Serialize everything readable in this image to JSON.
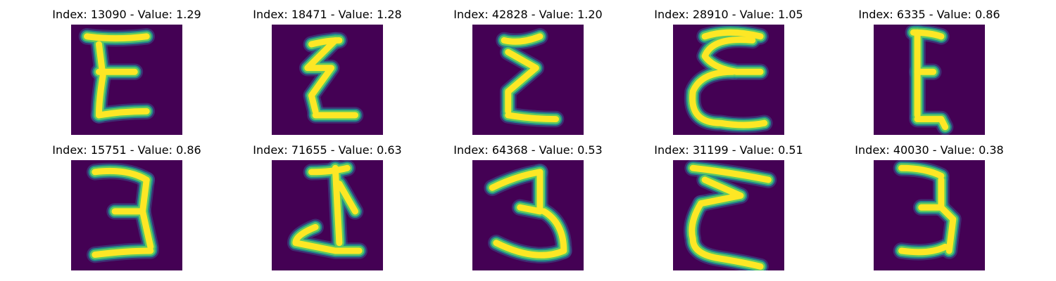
{
  "colormap": "viridis",
  "colors": {
    "background": "#440154",
    "stroke_core": "#fde725",
    "stroke_mid": "#5ec962",
    "stroke_edge": "#21918c",
    "stroke_rim": "#3b528b"
  },
  "samples": [
    {
      "title": "Index: 13090 - Value: 1.29",
      "index": 13090,
      "value": 1.29,
      "glyph": "E-block"
    },
    {
      "title": "Index: 18471 - Value: 1.28",
      "index": 18471,
      "value": 1.28,
      "glyph": "E-zigzag"
    },
    {
      "title": "Index: 42828 - Value: 1.20",
      "index": 42828,
      "value": 1.2,
      "glyph": "E-zigzag-2"
    },
    {
      "title": "Index: 28910 - Value: 1.05",
      "index": 28910,
      "value": 1.05,
      "glyph": "E-curly"
    },
    {
      "title": "Index: 6335 - Value: 0.86",
      "index": 6335,
      "value": 0.86,
      "glyph": "E-thin"
    },
    {
      "title": "Index: 15751 - Value: 0.86",
      "index": 15751,
      "value": 0.86,
      "glyph": "three-wide"
    },
    {
      "title": "Index: 71655 - Value: 0.63",
      "index": 71655,
      "value": 0.63,
      "glyph": "J-hook"
    },
    {
      "title": "Index: 64368 - Value: 0.53",
      "index": 64368,
      "value": 0.53,
      "glyph": "three-thin"
    },
    {
      "title": "Index: 31199 - Value: 0.51",
      "index": 31199,
      "value": 0.51,
      "glyph": "E-curly-2"
    },
    {
      "title": "Index: 40030 - Value: 0.38",
      "index": 40030,
      "value": 0.38,
      "glyph": "three-bold"
    }
  ]
}
